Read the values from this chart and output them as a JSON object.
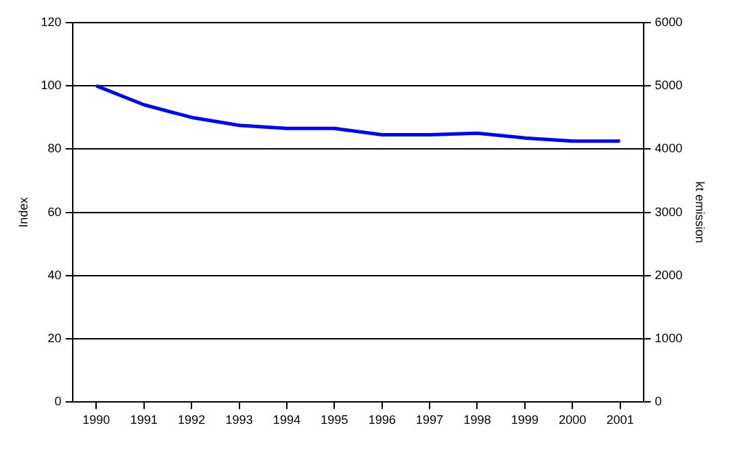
{
  "chart_data": {
    "type": "line",
    "ylabel": "Index",
    "y2label": "kt emission",
    "categories": [
      "1990",
      "1991",
      "1992",
      "1993",
      "1994",
      "1995",
      "1996",
      "1997",
      "1998",
      "1999",
      "2000",
      "2001"
    ],
    "series": [
      {
        "color": "#0000ff",
        "values": [
          100,
          94,
          90,
          87.5,
          86.5,
          86.5,
          84.5,
          84.5,
          85,
          83.5,
          82.5,
          82.5
        ]
      }
    ],
    "ylim": [
      0,
      120
    ],
    "yticks": [
      0,
      20,
      40,
      60,
      80,
      100,
      120
    ],
    "y2lim": [
      0,
      6000
    ],
    "y2ticks": [
      0,
      1000,
      2000,
      3000,
      4000,
      5000,
      6000
    ],
    "grid": "y",
    "legend": false,
    "marker": "none",
    "line_style": "solid"
  }
}
